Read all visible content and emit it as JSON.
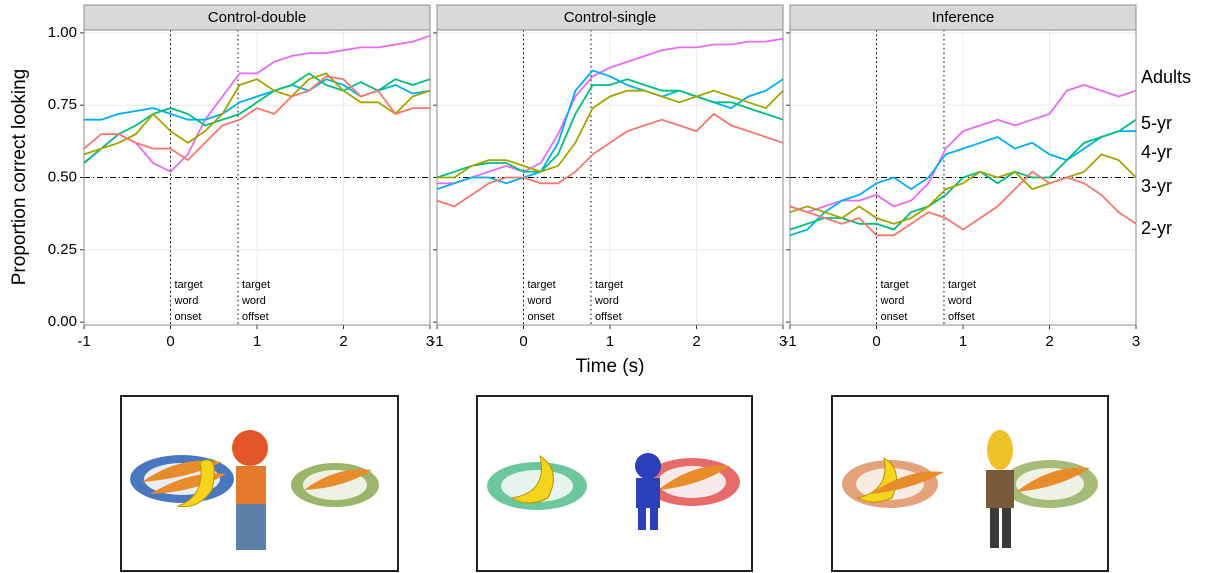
{
  "chart_data": {
    "type": "line",
    "ylabel": "Proportion correct looking",
    "xlabel": "Time (s)",
    "x": [
      -1,
      -0.8,
      -0.6,
      -0.4,
      -0.2,
      0,
      0.2,
      0.4,
      0.6,
      0.8,
      1,
      1.2,
      1.4,
      1.6,
      1.8,
      2,
      2.2,
      2.4,
      2.6,
      2.8,
      3
    ],
    "xlim": [
      -1,
      3
    ],
    "xticks": [
      -1,
      0,
      1,
      2,
      3
    ],
    "ylim": [
      -0.01,
      1.01
    ],
    "yticks": [
      {
        "value": 0,
        "label": "0.00"
      },
      {
        "value": 0.25,
        "label": "0.25"
      },
      {
        "value": 0.5,
        "label": "0.50"
      },
      {
        "value": 0.75,
        "label": "0.75"
      },
      {
        "value": 1,
        "label": "1.00"
      }
    ],
    "grid": true,
    "reference_line": 0.5,
    "annotations": [
      {
        "x": 0,
        "lines": [
          "target",
          "word",
          "onset"
        ]
      },
      {
        "x": 0.78,
        "lines": [
          "target",
          "word",
          "offset"
        ]
      }
    ],
    "series": [
      {
        "name": "Adults",
        "color": "#e76bf3"
      },
      {
        "name": "5-yr",
        "color": "#00b0f6"
      },
      {
        "name": "4-yr",
        "color": "#00bf7d"
      },
      {
        "name": "3-yr",
        "color": "#a3a500"
      },
      {
        "name": "2-yr",
        "color": "#f8766d"
      }
    ],
    "panels": [
      {
        "title": "Control-double",
        "series": [
          {
            "values": [
              0.55,
              0.6,
              0.65,
              0.62,
              0.55,
              0.52,
              0.58,
              0.7,
              0.78,
              0.86,
              0.86,
              0.9,
              0.92,
              0.93,
              0.93,
              0.94,
              0.95,
              0.95,
              0.96,
              0.97,
              0.99
            ]
          },
          {
            "values": [
              0.7,
              0.7,
              0.72,
              0.73,
              0.74,
              0.72,
              0.7,
              0.7,
              0.72,
              0.76,
              0.78,
              0.8,
              0.82,
              0.8,
              0.84,
              0.82,
              0.78,
              0.8,
              0.82,
              0.79,
              0.8
            ]
          },
          {
            "values": [
              0.55,
              0.6,
              0.65,
              0.68,
              0.72,
              0.74,
              0.72,
              0.68,
              0.7,
              0.72,
              0.76,
              0.8,
              0.82,
              0.86,
              0.82,
              0.8,
              0.83,
              0.8,
              0.84,
              0.82,
              0.84
            ]
          },
          {
            "values": [
              0.58,
              0.6,
              0.62,
              0.65,
              0.72,
              0.66,
              0.62,
              0.66,
              0.72,
              0.82,
              0.84,
              0.8,
              0.78,
              0.84,
              0.86,
              0.8,
              0.76,
              0.76,
              0.72,
              0.78,
              0.8
            ]
          },
          {
            "values": [
              0.6,
              0.65,
              0.65,
              0.62,
              0.6,
              0.6,
              0.56,
              0.62,
              0.68,
              0.7,
              0.74,
              0.72,
              0.78,
              0.8,
              0.85,
              0.84,
              0.78,
              0.8,
              0.72,
              0.74,
              0.74
            ]
          }
        ]
      },
      {
        "title": "Control-single",
        "series": [
          {
            "values": [
              0.48,
              0.48,
              0.5,
              0.52,
              0.54,
              0.52,
              0.55,
              0.65,
              0.78,
              0.85,
              0.88,
              0.9,
              0.92,
              0.94,
              0.95,
              0.95,
              0.96,
              0.96,
              0.97,
              0.97,
              0.98
            ]
          },
          {
            "values": [
              0.46,
              0.48,
              0.5,
              0.5,
              0.48,
              0.5,
              0.52,
              0.62,
              0.8,
              0.87,
              0.85,
              0.82,
              0.8,
              0.78,
              0.8,
              0.78,
              0.76,
              0.74,
              0.78,
              0.8,
              0.84
            ]
          },
          {
            "values": [
              0.5,
              0.52,
              0.54,
              0.55,
              0.55,
              0.52,
              0.52,
              0.58,
              0.72,
              0.82,
              0.82,
              0.84,
              0.82,
              0.8,
              0.8,
              0.78,
              0.76,
              0.76,
              0.74,
              0.72,
              0.7
            ]
          },
          {
            "values": [
              0.5,
              0.5,
              0.54,
              0.56,
              0.56,
              0.54,
              0.52,
              0.54,
              0.62,
              0.74,
              0.78,
              0.8,
              0.8,
              0.78,
              0.76,
              0.78,
              0.8,
              0.78,
              0.76,
              0.74,
              0.8
            ]
          },
          {
            "values": [
              0.42,
              0.4,
              0.44,
              0.48,
              0.5,
              0.5,
              0.48,
              0.48,
              0.52,
              0.58,
              0.62,
              0.66,
              0.68,
              0.7,
              0.68,
              0.66,
              0.72,
              0.68,
              0.66,
              0.64,
              0.62
            ]
          }
        ]
      },
      {
        "title": "Inference",
        "series": [
          {
            "values": [
              0.4,
              0.38,
              0.4,
              0.42,
              0.42,
              0.44,
              0.4,
              0.42,
              0.48,
              0.6,
              0.66,
              0.68,
              0.7,
              0.68,
              0.7,
              0.72,
              0.8,
              0.82,
              0.8,
              0.78,
              0.8
            ]
          },
          {
            "values": [
              0.3,
              0.32,
              0.38,
              0.42,
              0.44,
              0.48,
              0.5,
              0.46,
              0.5,
              0.58,
              0.6,
              0.62,
              0.64,
              0.6,
              0.62,
              0.58,
              0.56,
              0.6,
              0.64,
              0.66,
              0.66
            ]
          },
          {
            "values": [
              0.32,
              0.34,
              0.36,
              0.36,
              0.34,
              0.34,
              0.32,
              0.38,
              0.4,
              0.44,
              0.5,
              0.52,
              0.48,
              0.52,
              0.5,
              0.5,
              0.56,
              0.62,
              0.64,
              0.66,
              0.7
            ]
          },
          {
            "values": [
              0.38,
              0.4,
              0.38,
              0.36,
              0.4,
              0.36,
              0.34,
              0.36,
              0.4,
              0.46,
              0.48,
              0.52,
              0.5,
              0.52,
              0.46,
              0.48,
              0.5,
              0.52,
              0.58,
              0.56,
              0.5
            ]
          },
          {
            "values": [
              0.4,
              0.38,
              0.36,
              0.34,
              0.36,
              0.3,
              0.3,
              0.34,
              0.38,
              0.36,
              0.32,
              0.36,
              0.4,
              0.46,
              0.52,
              0.48,
              0.5,
              0.48,
              0.44,
              0.38,
              0.34
            ]
          }
        ]
      }
    ]
  }
}
